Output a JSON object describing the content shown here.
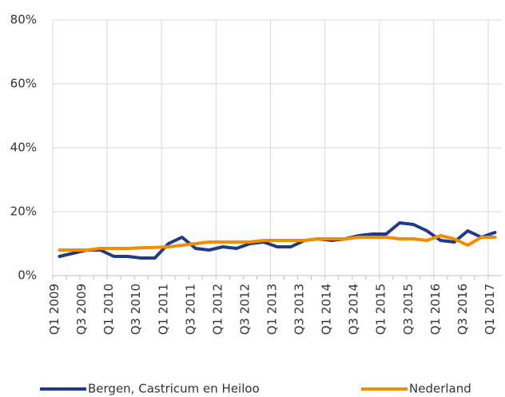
{
  "chart_data": {
    "type": "line",
    "categories": [
      "Q1 2009",
      null,
      "Q3 2009",
      null,
      "Q1 2010",
      null,
      "Q3 2010",
      null,
      "Q1 2011",
      null,
      "Q3 2011",
      null,
      "Q1 2012",
      null,
      "Q3 2012",
      null,
      "Q1 2013",
      null,
      "Q3 2013",
      null,
      "Q1 2014",
      null,
      "Q3 2014",
      null,
      "Q1 2015",
      null,
      "Q3 2015",
      null,
      "Q1 2016",
      null,
      "Q3 2016",
      null,
      "Q1 2017"
    ],
    "series": [
      {
        "name": "Bergen, Castricum en Heiloo",
        "color": "#1f3a8a",
        "values": [
          6,
          7,
          8,
          8,
          6,
          6,
          5.5,
          5.5,
          10,
          12,
          8.5,
          8,
          9,
          8.5,
          10,
          10.5,
          9,
          9,
          11,
          11.5,
          11,
          11.5,
          12.5,
          13,
          13,
          16.5,
          16,
          14,
          11,
          10.5,
          14,
          12,
          13.5
        ]
      },
      {
        "name": "Nederland",
        "color": "#f28c00",
        "values": [
          8,
          8,
          8,
          8.5,
          8.5,
          8.5,
          8.7,
          8.8,
          9,
          9.5,
          10,
          10.5,
          10.5,
          10.5,
          10.5,
          11,
          11,
          11,
          11,
          11.5,
          11.5,
          11.5,
          12,
          12,
          12,
          11.5,
          11.5,
          11,
          12.5,
          11.5,
          9.5,
          12,
          12
        ]
      }
    ],
    "ylim": [
      0,
      80
    ],
    "yticks": [
      {
        "value": 0,
        "label": "0%"
      },
      {
        "value": 20,
        "label": "20%"
      },
      {
        "value": 40,
        "label": "40%"
      },
      {
        "value": 60,
        "label": "60%"
      },
      {
        "value": 80,
        "label": "80%"
      }
    ],
    "grid": true,
    "legend": "bottom"
  }
}
